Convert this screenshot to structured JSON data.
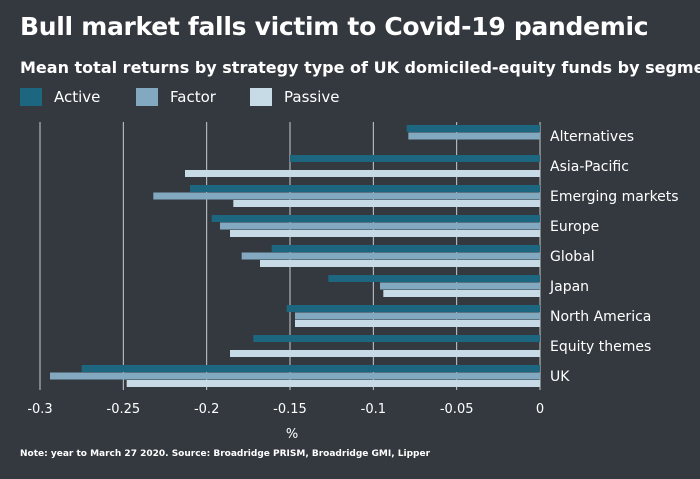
{
  "title": "Bull market falls victim to Covid-19 pandemic",
  "subtitle": "Mean total returns by strategy type of UK domiciled-equity funds by segment",
  "note": "Note: year to March 27 2020.  Source: Broadridge PRISM, Broadridge GMI, Lipper",
  "colors": {
    "background": "#34393f",
    "active": "#1d6680",
    "factor": "#82a9c0",
    "passive": "#c7dbe6",
    "grid": "#c8cdd2",
    "text": "#ffffff"
  },
  "chart_data": {
    "type": "bar",
    "orientation": "horizontal",
    "categories": [
      "Alternatives",
      "Asia-Pacific",
      "Emerging markets",
      "Europe",
      "Global",
      "Japan",
      "North America",
      "Equity themes",
      "UK"
    ],
    "series": [
      {
        "name": "Active",
        "color": "#1d6680",
        "values": [
          -0.08,
          -0.15,
          -0.21,
          -0.197,
          -0.161,
          -0.127,
          -0.152,
          -0.172,
          -0.275
        ]
      },
      {
        "name": "Factor",
        "color": "#82a9c0",
        "values": [
          -0.079,
          null,
          -0.232,
          -0.192,
          -0.179,
          -0.096,
          -0.147,
          null,
          -0.294
        ]
      },
      {
        "name": "Passive",
        "color": "#c7dbe6",
        "values": [
          null,
          -0.213,
          -0.184,
          -0.186,
          -0.168,
          -0.094,
          -0.147,
          -0.186,
          -0.248
        ]
      }
    ],
    "xlabel": "%",
    "ylabel": "",
    "xlim": [
      -0.3,
      0
    ],
    "xticks": [
      -0.3,
      -0.25,
      -0.2,
      -0.15,
      -0.1,
      -0.05,
      0
    ],
    "xtick_labels": [
      "-0.3",
      "-0.25",
      "-0.2",
      "-0.15",
      "-0.1",
      "-0.05",
      "0"
    ],
    "grid": "vertical",
    "legend_position": "top-left"
  }
}
